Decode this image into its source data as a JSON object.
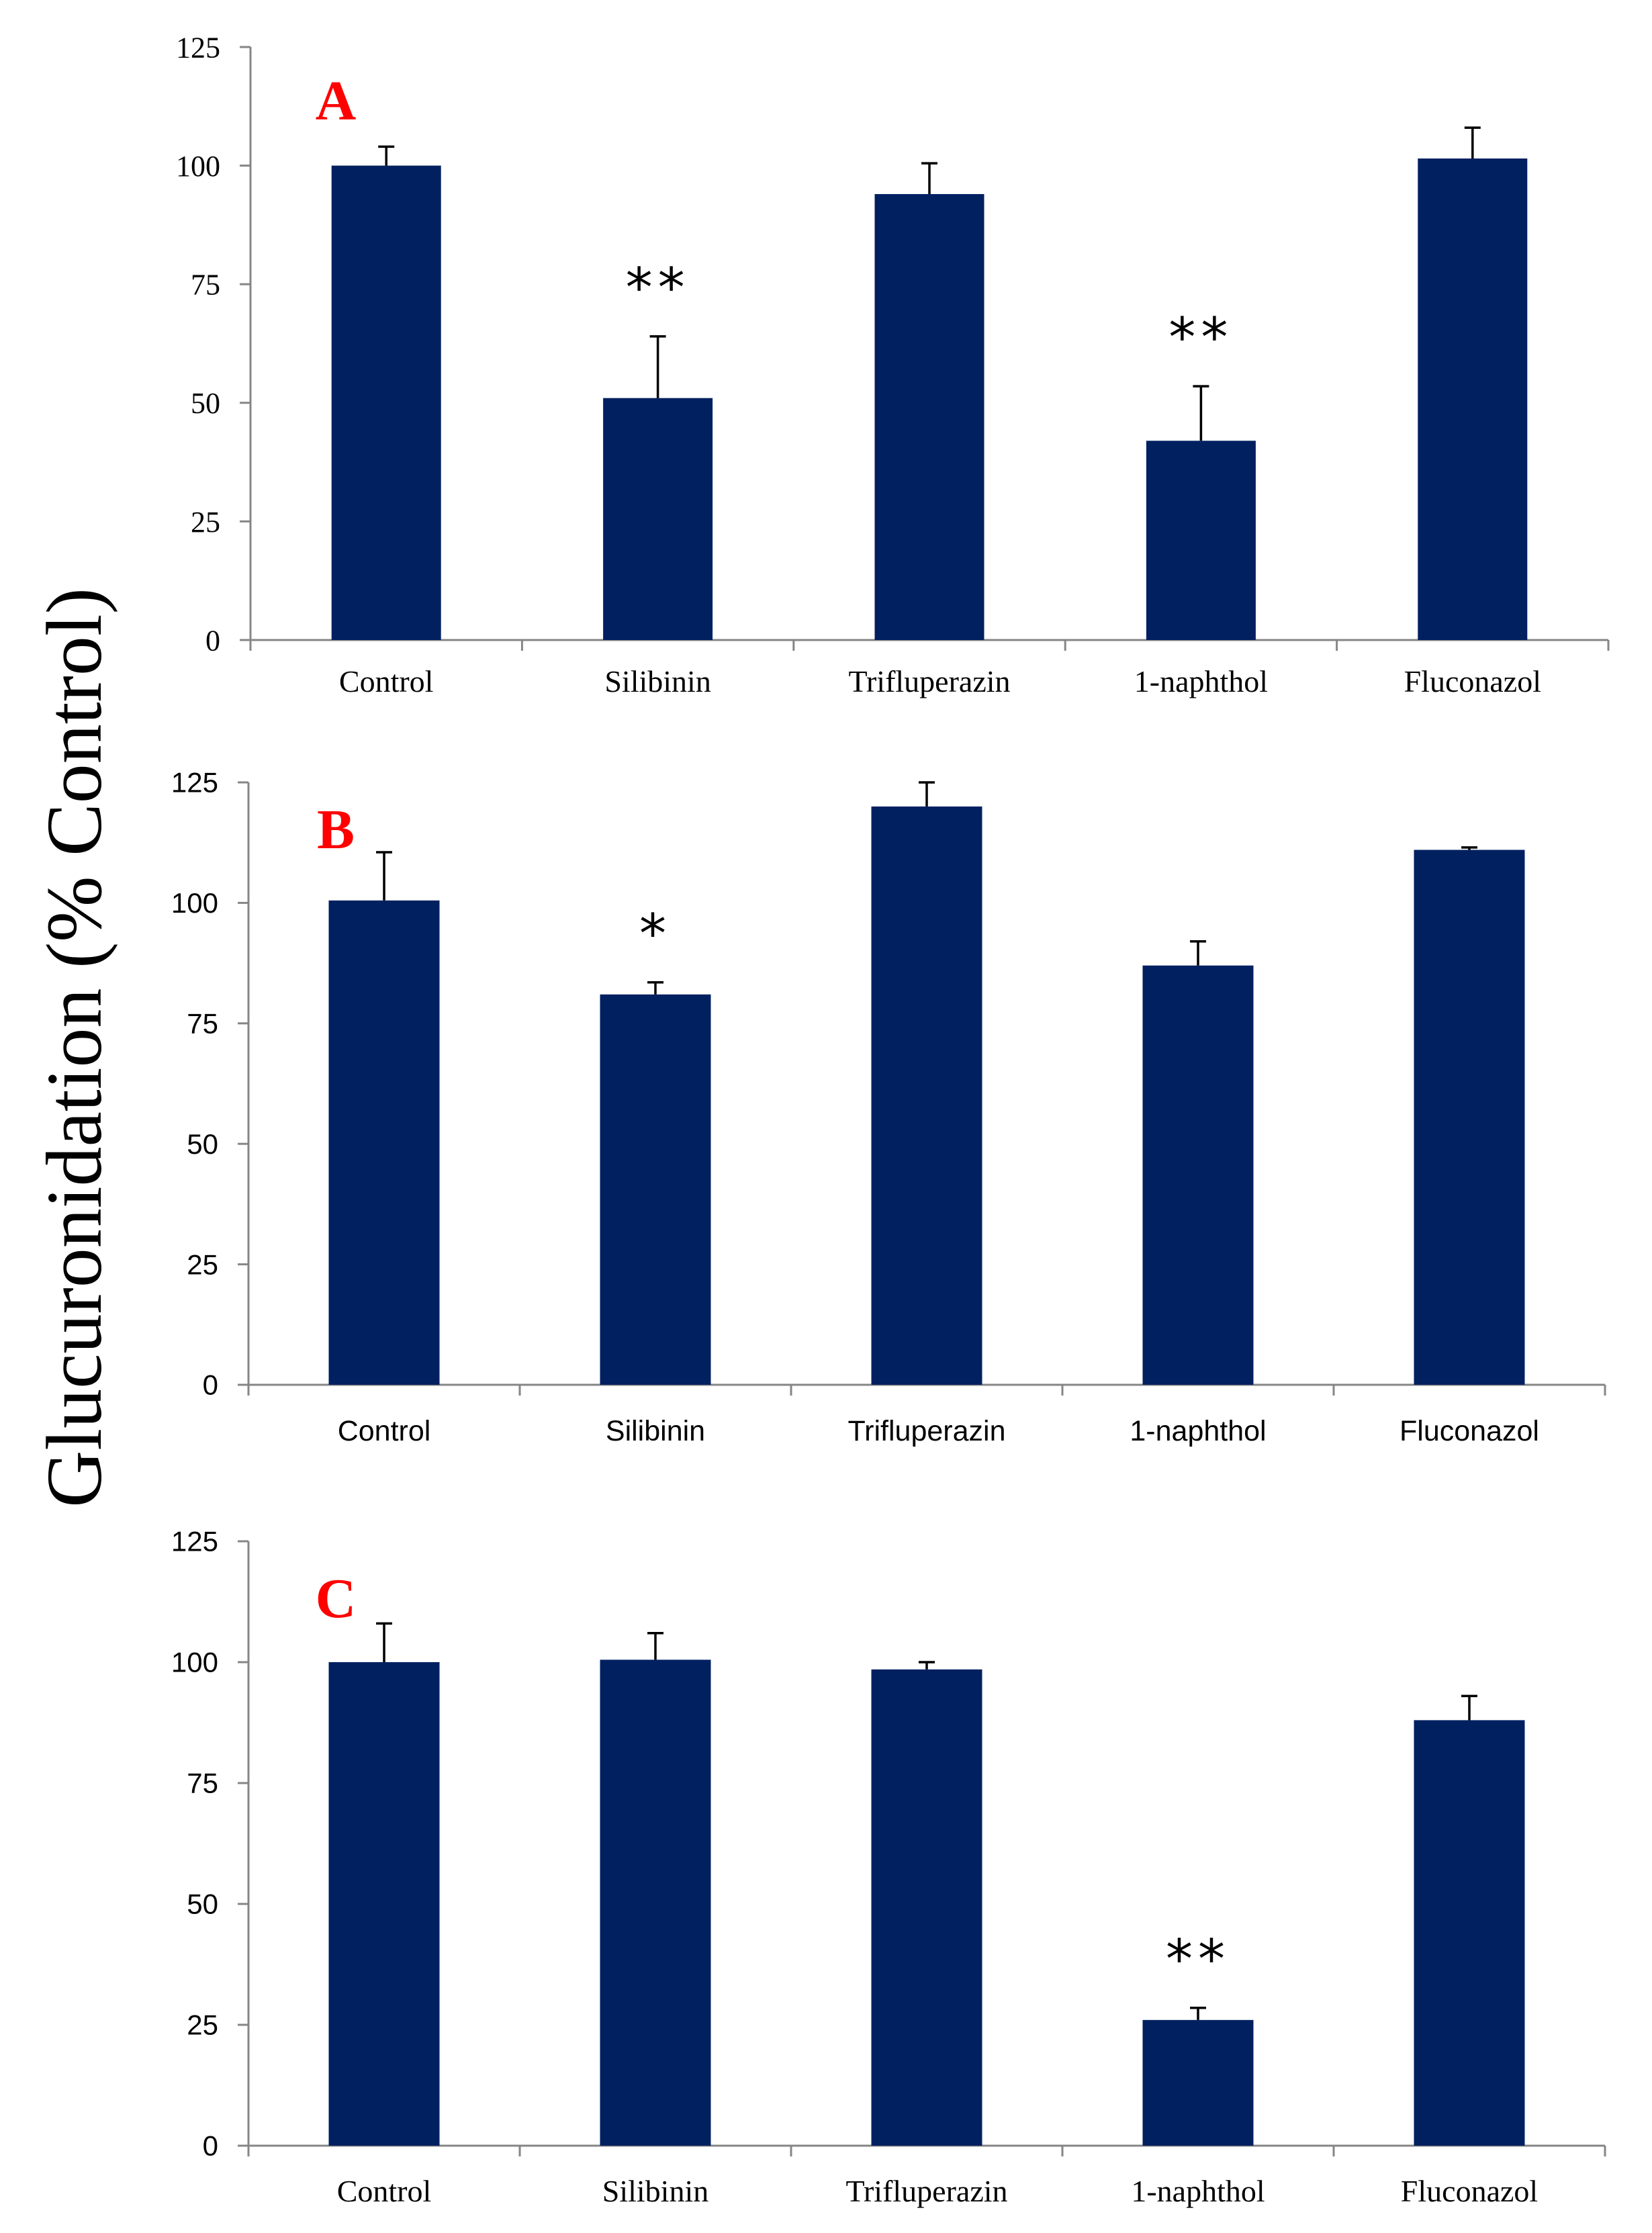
{
  "y_axis_title": "Glucuronidation (% Control)",
  "bar_color": "#002060",
  "panel_label_color": "#ff0000",
  "chart_data": [
    {
      "type": "bar",
      "panel": "A",
      "categories": [
        "Control",
        "Silibinin",
        "Trifluperazin",
        "1-naphthol",
        "Fluconazol"
      ],
      "values": [
        100,
        51,
        94,
        42,
        101.5
      ],
      "errors": [
        4,
        13,
        6.5,
        11.5,
        6.5
      ],
      "significance": [
        "",
        "**",
        "",
        "**",
        ""
      ],
      "ylim": [
        0,
        125
      ],
      "yticks": [
        0,
        25,
        50,
        75,
        100,
        125
      ],
      "ylabel": "Glucuronidation (% Control)",
      "xlabel": ""
    },
    {
      "type": "bar",
      "panel": "B",
      "categories": [
        "Control",
        "Silibinin",
        "Trifluperazin",
        "1-naphthol",
        "Fluconazol"
      ],
      "values": [
        100.5,
        81,
        120,
        87,
        111
      ],
      "errors": [
        10,
        2.5,
        5,
        5,
        0.5
      ],
      "significance": [
        "",
        "*",
        "",
        "",
        ""
      ],
      "ylim": [
        0,
        125
      ],
      "yticks": [
        0,
        25,
        50,
        75,
        100,
        125
      ],
      "ylabel": "Glucuronidation (% Control)",
      "xlabel": ""
    },
    {
      "type": "bar",
      "panel": "C",
      "categories": [
        "Control",
        "Silibinin",
        "Trifluperazin",
        "1-naphthol",
        "Fluconazol"
      ],
      "values": [
        100,
        100.5,
        98.5,
        26,
        88
      ],
      "errors": [
        8,
        5.5,
        1.5,
        2.5,
        5
      ],
      "significance": [
        "",
        "",
        "",
        "**",
        ""
      ],
      "ylim": [
        0,
        125
      ],
      "yticks": [
        0,
        25,
        50,
        75,
        100,
        125
      ],
      "ylabel": "Glucuronidation (% Control)",
      "xlabel": ""
    }
  ]
}
